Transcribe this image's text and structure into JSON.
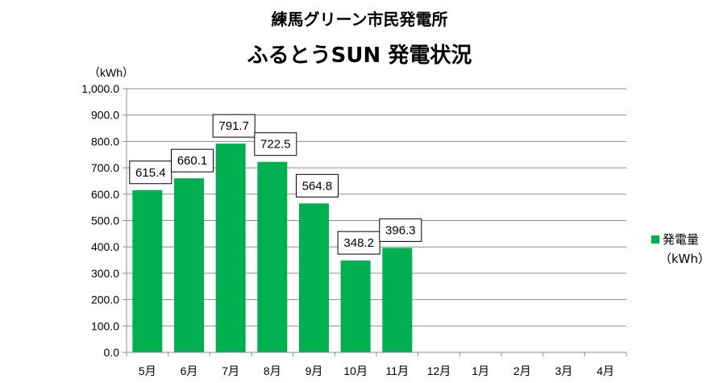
{
  "header": {
    "title": "練馬グリーン市民発電所",
    "subtitle": "ふるとうSUN 発電状況"
  },
  "chart_data": {
    "type": "bar",
    "title": "練馬グリーン市民発電所",
    "subtitle": "ふるとうSUN 発電状況",
    "ylabel": "（kWh）",
    "xlabel": "",
    "ylim": [
      0,
      1000
    ],
    "ytick_step": 100,
    "ytick_labels": [
      "0.0",
      "100.0",
      "200.0",
      "300.0",
      "400.0",
      "500.0",
      "600.0",
      "700.0",
      "800.0",
      "900.0",
      "1,000.0"
    ],
    "categories": [
      "5月",
      "6月",
      "7月",
      "8月",
      "9月",
      "10月",
      "11月",
      "12月",
      "1月",
      "2月",
      "3月",
      "4月"
    ],
    "series": [
      {
        "name": "発電量",
        "name_unit": "（kWh）",
        "color": "#00b050",
        "values": [
          615.4,
          660.1,
          791.7,
          722.5,
          564.8,
          348.2,
          396.3,
          null,
          null,
          null,
          null,
          null
        ],
        "data_labels": [
          "615.4",
          "660.1",
          "791.7",
          "722.5",
          "564.8",
          "348.2",
          "396.3"
        ]
      }
    ],
    "grid": true,
    "legend_position": "right"
  }
}
